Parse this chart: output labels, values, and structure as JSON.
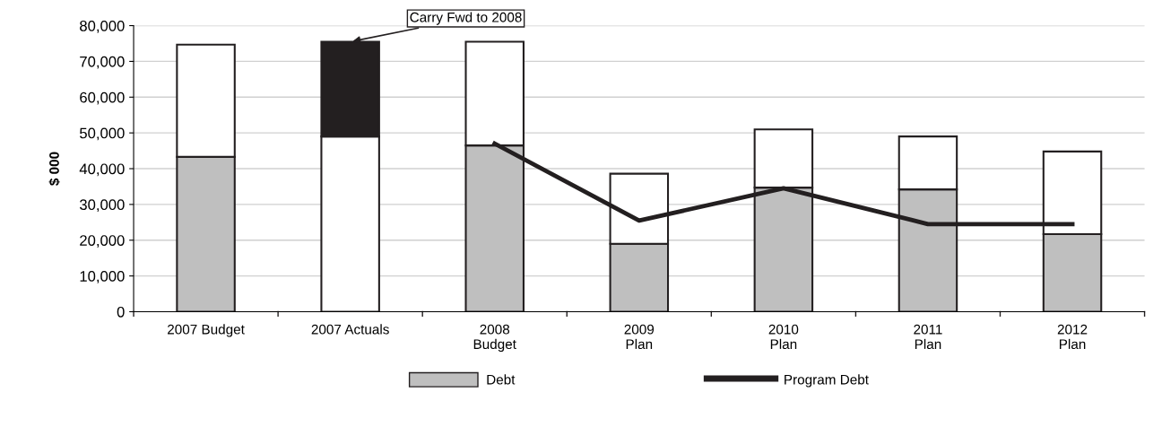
{
  "chart_data": {
    "type": "bar",
    "stacked": true,
    "ylabel": "$ 000",
    "categories": [
      "2007 Budget",
      "2007 Actuals",
      "2008\nBudget",
      "2009\nPlan",
      "2010\nPlan",
      "2011\nPlan",
      "2012\nPlan"
    ],
    "series": [
      {
        "name": "Debt",
        "color": "#bfbfbf",
        "values": [
          43300,
          0,
          46500,
          19000,
          34700,
          34200,
          21700
        ]
      },
      {
        "color": "#ffffff",
        "values": [
          31400,
          49000,
          29000,
          19600,
          16300,
          14800,
          23100
        ]
      },
      {
        "color": "#231f20",
        "values": [
          null,
          26500,
          null,
          null,
          null,
          null,
          null
        ]
      },
      {
        "name": "Program Debt",
        "type": "line",
        "color": "#231f20",
        "values": [
          null,
          null,
          47000,
          25500,
          34500,
          24500,
          24500
        ]
      }
    ],
    "ylim": [
      0,
      80000
    ],
    "yticks": [
      0,
      {
        "value": 10000,
        "label": "10,000"
      },
      {
        "value": 20000,
        "label": "20,000"
      },
      {
        "value": 30000,
        "label": "30,000"
      },
      {
        "value": 40000,
        "label": "40,000"
      },
      {
        "value": 50000,
        "label": "50,000"
      },
      {
        "value": 60000,
        "label": "60,000"
      },
      {
        "value": 70000,
        "label": "70,000"
      },
      {
        "value": 80000,
        "label": "80,000"
      }
    ],
    "annotations": [
      {
        "text": "Carry Fwd to 2008",
        "x": "2007 Actuals",
        "y": 75500
      }
    ],
    "grid": "y",
    "legend": "bottom",
    "marker": "none",
    "line_style": "solid"
  }
}
